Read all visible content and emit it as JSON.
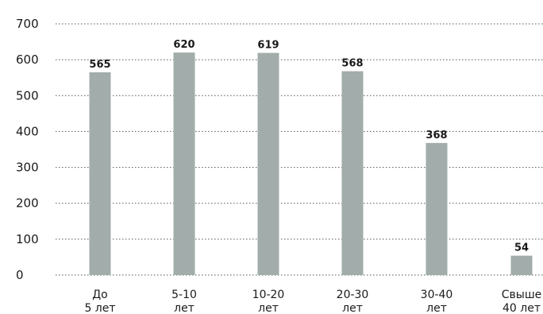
{
  "chart_data": {
    "type": "bar",
    "categories": [
      [
        "До",
        "5 лет"
      ],
      [
        "5-10",
        "лет"
      ],
      [
        "10-20",
        "лет"
      ],
      [
        "20-30",
        "лет"
      ],
      [
        "30-40",
        "лет"
      ],
      [
        "Свыше",
        "40 лет"
      ]
    ],
    "values": [
      565,
      620,
      619,
      568,
      368,
      54
    ],
    "data_labels": [
      "565",
      "620",
      "619",
      "568",
      "368",
      "54"
    ],
    "y_ticks": [
      "0",
      "100",
      "200",
      "300",
      "400",
      "500",
      "600",
      "700"
    ],
    "ylim": [
      0,
      700
    ],
    "grid": true,
    "bar_color": "#a2acab",
    "grid_color": "#555555",
    "text_color": "#1a1a1a"
  }
}
